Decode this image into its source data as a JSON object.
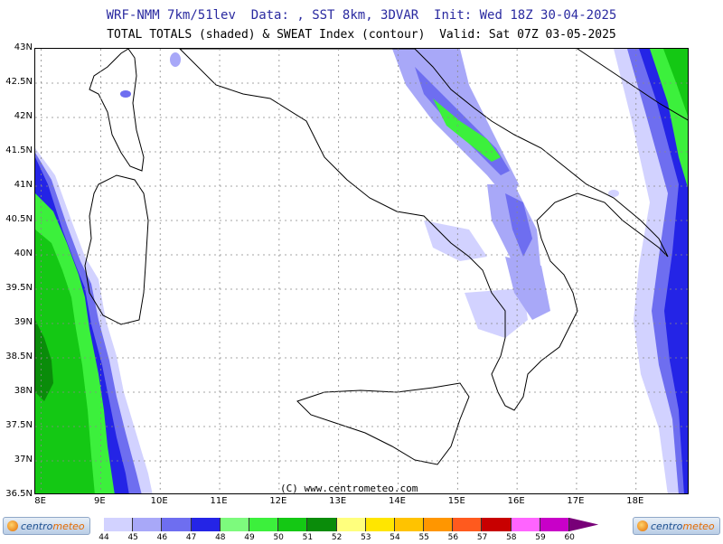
{
  "header": {
    "line1": "WRF-NMM 7km/51lev  Data: , SST 8km, 3DVAR  Init: Wed 18Z 30-04-2025",
    "line2": "TOTAL TOTALS (shaded) & SWEAT Index (contour)  Valid: Sat 07Z 03-05-2025"
  },
  "map": {
    "lat_labels": [
      "43N",
      "42.5N",
      "42N",
      "41.5N",
      "41N",
      "40.5N",
      "40N",
      "39.5N",
      "39N",
      "38.5N",
      "38N",
      "37.5N",
      "37N",
      "36.5N"
    ],
    "lon_labels": [
      "8E",
      "9E",
      "10E",
      "11E",
      "12E",
      "13E",
      "14E",
      "15E",
      "16E",
      "17E",
      "18E"
    ],
    "lon_range": [
      7.9,
      18.9
    ],
    "lat_range": [
      36.5,
      43.0
    ],
    "copyright": "(C) www.centrometeo.com"
  },
  "colorbar": {
    "ticks": [
      "44",
      "45",
      "46",
      "47",
      "48",
      "49",
      "50",
      "51",
      "52",
      "53",
      "54",
      "55",
      "56",
      "57",
      "58",
      "59",
      "60"
    ],
    "colors": [
      "#d2d2ff",
      "#a8a8f8",
      "#6e6ef0",
      "#2424e6",
      "#7dfa7d",
      "#3cf03c",
      "#14c814",
      "#0a8c0a",
      "#ffff7d",
      "#ffe600",
      "#ffc300",
      "#ff9600",
      "#ff5a1e",
      "#c80000",
      "#ff64ff",
      "#c800c8",
      "#780078"
    ]
  },
  "logos": {
    "brand_prefix": "centro",
    "brand_suffix": "meteo"
  }
}
